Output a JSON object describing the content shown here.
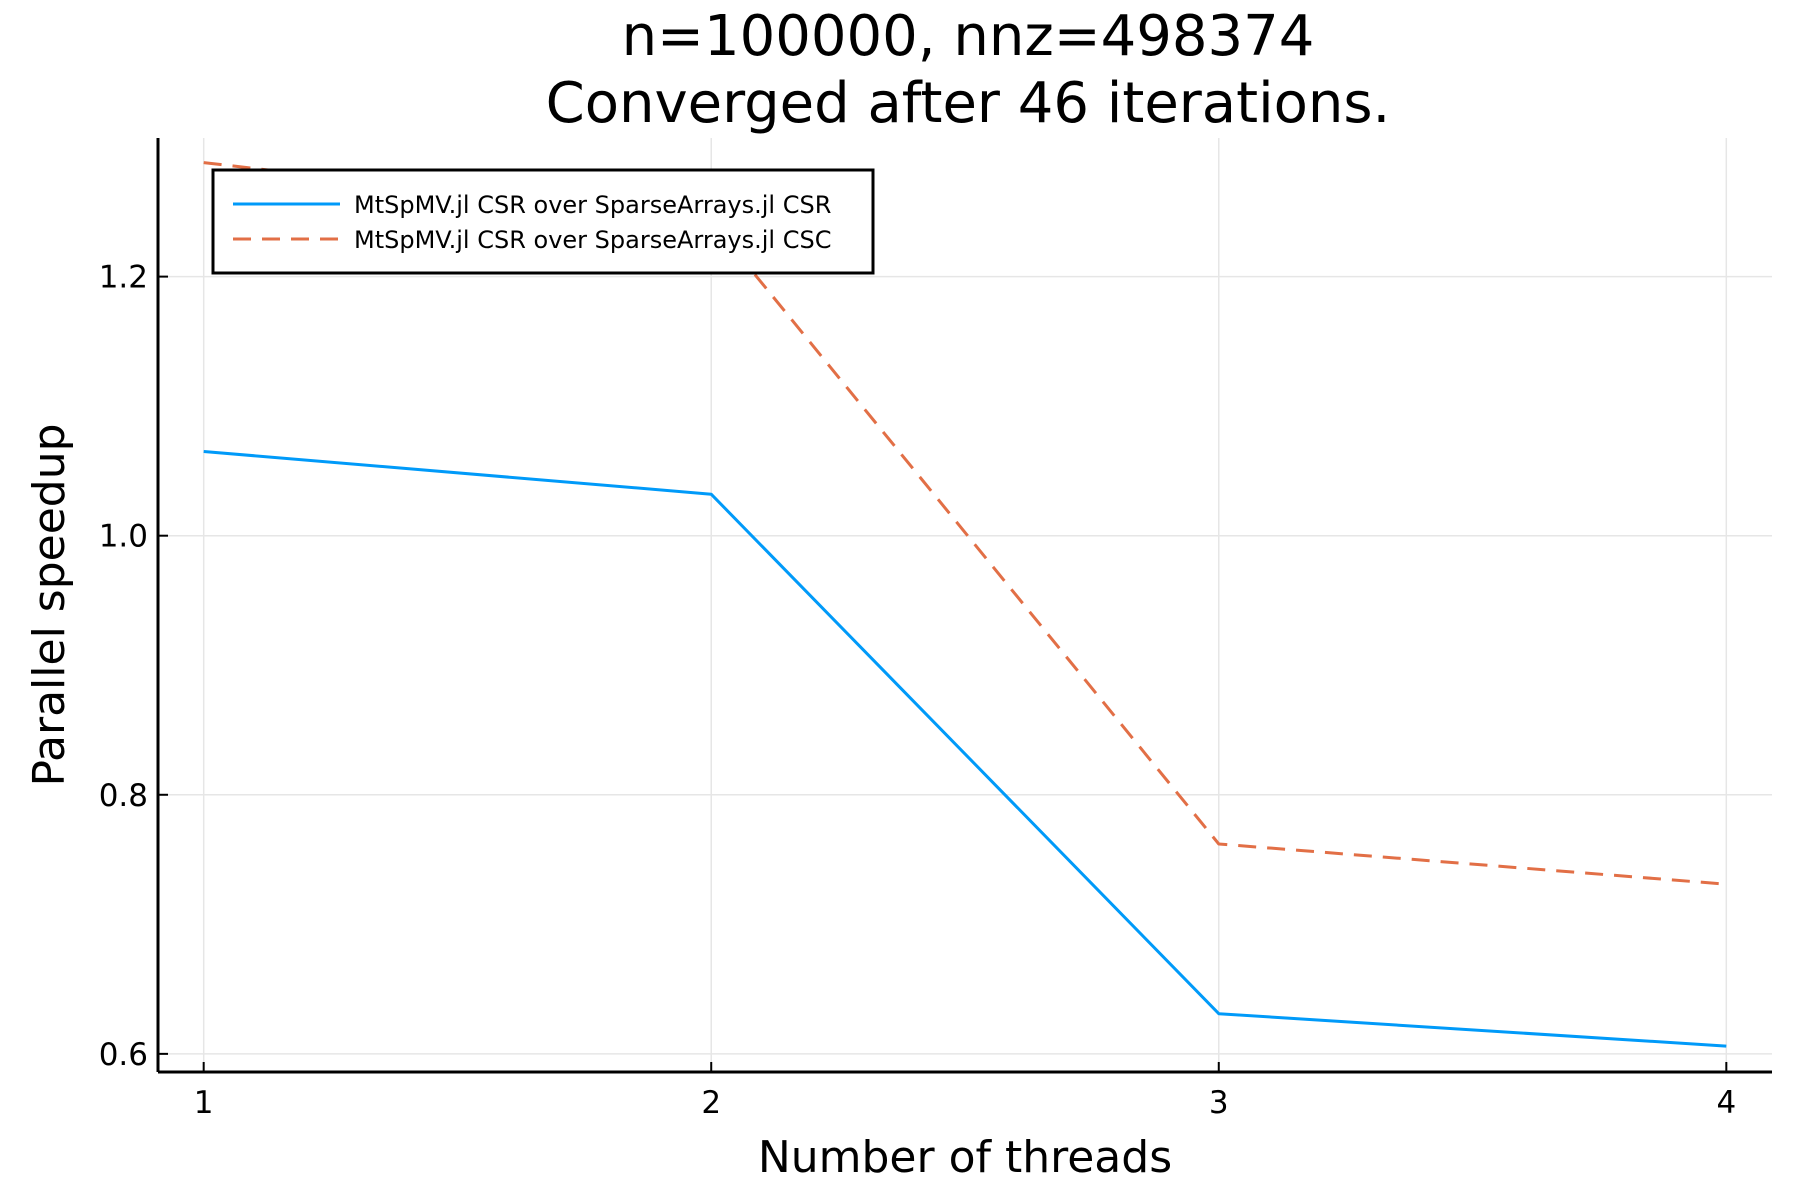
{
  "chart_data": {
    "type": "line",
    "title": [
      "n=100000, nnz=498374",
      "Converged after 46 iterations."
    ],
    "xlabel": "Number of threads",
    "ylabel": "Parallel speedup",
    "x": [
      1,
      2,
      3,
      4
    ],
    "xticks": [
      "1",
      "2",
      "3",
      "4"
    ],
    "yticks": [
      "0.6",
      "0.8",
      "1.0",
      "1.2"
    ],
    "ytick_values": [
      0.6,
      0.8,
      1.0,
      1.2
    ],
    "xlim": [
      0.91,
      4.09
    ],
    "ylim": [
      0.586,
      1.307
    ],
    "grid": true,
    "legend_position": "top-left",
    "series": [
      {
        "name": "MtSpMV.jl CSR over SparseArrays.jl CSR",
        "values": [
          1.065,
          1.032,
          0.631,
          0.606
        ],
        "color": "#009af9",
        "style": "solid"
      },
      {
        "name": "MtSpMV.jl CSR over SparseArrays.jl CSC",
        "values": [
          1.288,
          1.243,
          0.762,
          0.731
        ],
        "color": "#e26f46",
        "style": "dashed"
      }
    ]
  }
}
